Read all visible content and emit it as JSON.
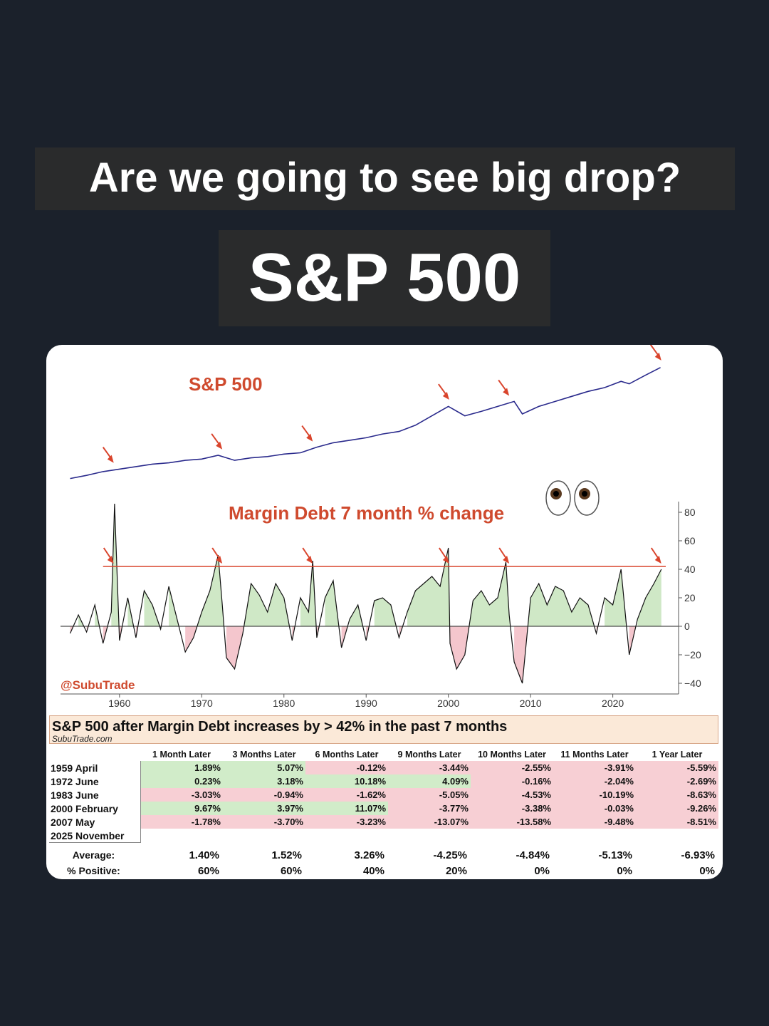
{
  "headline": "Are we going to see big drop?",
  "subheadline": "S&P 500",
  "chart_data": [
    {
      "type": "line",
      "title": "S&P 500",
      "color": "#2a2a8c",
      "annotation_color": "#d9442c",
      "x": [
        1954,
        1956,
        1958,
        1960,
        1962,
        1964,
        1966,
        1968,
        1970,
        1972,
        1974,
        1976,
        1978,
        1980,
        1982,
        1984,
        1986,
        1988,
        1990,
        1992,
        1994,
        1996,
        1998,
        2000,
        2002,
        2004,
        2006,
        2008,
        2009,
        2011,
        2013,
        2015,
        2017,
        2019,
        2021,
        2022,
        2024,
        2025.8
      ],
      "y": [
        0.05,
        0.1,
        0.16,
        0.2,
        0.24,
        0.28,
        0.3,
        0.34,
        0.36,
        0.42,
        0.34,
        0.38,
        0.4,
        0.44,
        0.46,
        0.55,
        0.62,
        0.66,
        0.7,
        0.76,
        0.8,
        0.9,
        1.05,
        1.2,
        1.05,
        1.12,
        1.2,
        1.28,
        1.08,
        1.2,
        1.28,
        1.36,
        1.44,
        1.5,
        1.6,
        1.56,
        1.7,
        1.82
      ],
      "arrows_x": [
        1959.3,
        1972.5,
        1983.5,
        2000.1,
        2007.4,
        2025.9
      ]
    },
    {
      "type": "area",
      "title": "Margin Debt 7 month % change",
      "xlabel": "",
      "ylabel": "",
      "xlim": [
        1953,
        2028
      ],
      "ylim": [
        -50,
        90
      ],
      "x_ticks": [
        "1960",
        "1970",
        "1980",
        "1990",
        "2000",
        "2010",
        "2020"
      ],
      "y_ticks": [
        "80",
        "60",
        "40",
        "20",
        "0",
        "−20",
        "−40"
      ],
      "threshold": 42,
      "positive_color": "#cfe8c6",
      "negative_color": "#f4c6cd",
      "x": [
        1954,
        1955,
        1956,
        1957,
        1958,
        1959,
        1959.4,
        1960,
        1961,
        1962,
        1963,
        1964,
        1965,
        1966,
        1967,
        1968,
        1969,
        1970,
        1971,
        1972,
        1972.5,
        1973,
        1974,
        1975,
        1976,
        1977,
        1978,
        1979,
        1980,
        1981,
        1982,
        1983,
        1983.5,
        1984,
        1985,
        1986,
        1987,
        1988,
        1989,
        1990,
        1991,
        1992,
        1993,
        1994,
        1995,
        1996,
        1997,
        1998,
        1999,
        2000,
        2000.2,
        2001,
        2002,
        2003,
        2004,
        2005,
        2006,
        2007,
        2007.4,
        2008,
        2009,
        2010,
        2011,
        2012,
        2013,
        2014,
        2015,
        2016,
        2017,
        2018,
        2019,
        2020,
        2021,
        2022,
        2023,
        2024,
        2025,
        2025.9
      ],
      "values": [
        -5,
        8,
        -4,
        15,
        -12,
        10,
        86,
        -10,
        20,
        -8,
        25,
        15,
        -2,
        28,
        5,
        -18,
        -8,
        10,
        25,
        50,
        15,
        -22,
        -30,
        -5,
        30,
        22,
        10,
        30,
        20,
        -10,
        20,
        10,
        46,
        -8,
        20,
        32,
        -15,
        5,
        15,
        -10,
        18,
        20,
        15,
        -8,
        10,
        25,
        30,
        35,
        28,
        55,
        -12,
        -30,
        -20,
        18,
        25,
        15,
        20,
        45,
        8,
        -25,
        -40,
        20,
        30,
        15,
        28,
        25,
        10,
        20,
        15,
        -5,
        20,
        15,
        40,
        -20,
        5,
        20,
        30,
        40
      ],
      "watermark": "@SubuTrade"
    }
  ],
  "table": {
    "title": "S&P 500 after Margin Debt increases by > 42% in the past 7 months",
    "source": "SubuTrade.com",
    "headers": [
      "1 Month Later",
      "3 Months Later",
      "6 Months Later",
      "9 Months Later",
      "10 Months Later",
      "11 Months Later",
      "1 Year Later"
    ],
    "rows": [
      {
        "label": "1959 April",
        "values": [
          "1.89%",
          "5.07%",
          "-0.12%",
          "-3.44%",
          "-2.55%",
          "-3.91%",
          "-5.59%"
        ]
      },
      {
        "label": "1972 June",
        "values": [
          "0.23%",
          "3.18%",
          "10.18%",
          "4.09%",
          "-0.16%",
          "-2.04%",
          "-2.69%"
        ]
      },
      {
        "label": "1983 June",
        "values": [
          "-3.03%",
          "-0.94%",
          "-1.62%",
          "-5.05%",
          "-4.53%",
          "-10.19%",
          "-8.63%"
        ]
      },
      {
        "label": "2000 February",
        "values": [
          "9.67%",
          "3.97%",
          "11.07%",
          "-3.77%",
          "-3.38%",
          "-0.03%",
          "-9.26%"
        ]
      },
      {
        "label": "2007 May",
        "values": [
          "-1.78%",
          "-3.70%",
          "-3.23%",
          "-13.07%",
          "-13.58%",
          "-9.48%",
          "-8.51%"
        ]
      },
      {
        "label": "2025 November",
        "values": [
          "",
          "",
          "",
          "",
          "",
          "",
          ""
        ]
      }
    ],
    "average_label": "Average:",
    "average": [
      "1.40%",
      "1.52%",
      "3.26%",
      "-4.25%",
      "-4.84%",
      "-5.13%",
      "-6.93%"
    ],
    "positive_label": "% Positive:",
    "positive": [
      "60%",
      "60%",
      "40%",
      "20%",
      "0%",
      "0%",
      "0%"
    ]
  }
}
